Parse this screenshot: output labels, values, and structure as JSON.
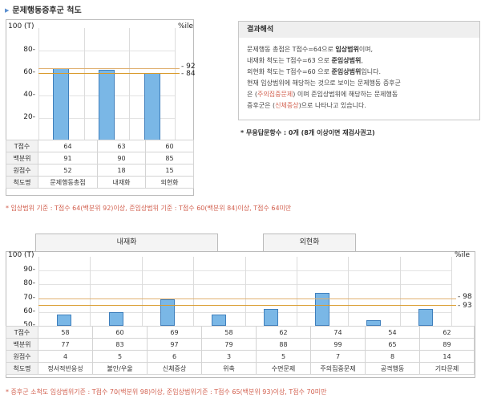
{
  "section_title": "문제행동증후군 척도",
  "chart1": {
    "ytop": "100 (T)",
    "yticks": [
      "80",
      "60",
      "40",
      "20"
    ],
    "pct_label": "%ile",
    "marker_high": "92",
    "marker_low": "84",
    "rows": [
      {
        "label": "T점수",
        "values": [
          "64",
          "63",
          "60"
        ]
      },
      {
        "label": "백분위",
        "values": [
          "91",
          "90",
          "85"
        ]
      },
      {
        "label": "원점수",
        "values": [
          "52",
          "18",
          "15"
        ]
      },
      {
        "label": "척도명",
        "values": [
          "문제행동총점",
          "내재화",
          "외현화"
        ]
      }
    ]
  },
  "panel": {
    "title": "결과해석",
    "line1_pre": "문제행동 총점은 T점수=64으로 ",
    "line1_b": "임상범위",
    "line1_post": "이며,",
    "line2_pre": "내재화 척도는 T점수=63 으로 ",
    "line2_b": "준임상범위",
    "line2_post": ",",
    "line3_pre": "외현화 척도는 T점수=60 으로 ",
    "line3_b": "준임상범위",
    "line3_post": "입니다.",
    "line4": "현재 임상범위에 해당하는 것으로 보이는 문제행동 증후군",
    "line5_pre": "은 (",
    "line5_hl": "주의집중문제",
    "line5_post": ") 이며 준임상범위에 해당하는 문제행동",
    "line6_pre": "증후군은 (",
    "line6_hl": "신체증상",
    "line6_post": ")으로 나타나고 있습니다."
  },
  "no_answer_note": "* 무응답문항수 : 0개 (8개 이상이면 재검사권고)",
  "criteria1": "* 임상범위 기준 : T점수 64(백분위 92)이상, 준임상범위 기준 : T점수 60(백분위 84)이상, T점수 64미만",
  "chart2": {
    "group_internal": "내재화",
    "group_external": "외현화",
    "ytop": "100 (T)",
    "yticks": [
      "90",
      "80",
      "70",
      "60",
      "50"
    ],
    "pct_label": "%ile",
    "marker_high": "98",
    "marker_low": "93",
    "rows": [
      {
        "label": "T점수",
        "values": [
          "58",
          "60",
          "69",
          "58",
          "62",
          "74",
          "54",
          "62"
        ]
      },
      {
        "label": "백분위",
        "values": [
          "77",
          "83",
          "97",
          "79",
          "88",
          "99",
          "65",
          "89"
        ]
      },
      {
        "label": "원점수",
        "values": [
          "4",
          "5",
          "6",
          "3",
          "5",
          "7",
          "8",
          "14"
        ]
      },
      {
        "label": "척도명",
        "values": [
          "정서적반응성",
          "불안/우울",
          "신체증상",
          "위축",
          "수면문제",
          "주의집중문제",
          "공격행동",
          "기타문제"
        ]
      }
    ]
  },
  "criteria2": "* 증후군 소척도 임상범위기준 : T점수 70(백분위 98)이상, 준임상범위기준 : T점수 65(백분위 93)이상, T점수 70미만",
  "chart_data": [
    {
      "type": "bar",
      "categories": [
        "문제행동총점",
        "내재화",
        "외현화"
      ],
      "values": [
        64,
        63,
        60
      ],
      "ylim": [
        0,
        100
      ],
      "reference_lines": [
        {
          "t": 64,
          "percentile": 92
        },
        {
          "t": 60,
          "percentile": 84
        }
      ]
    },
    {
      "type": "bar",
      "categories": [
        "정서적반응성",
        "불안/우울",
        "신체증상",
        "위축",
        "수면문제",
        "주의집중문제",
        "공격행동",
        "기타문제"
      ],
      "values": [
        58,
        60,
        69,
        58,
        62,
        74,
        54,
        62
      ],
      "ylim": [
        50,
        100
      ],
      "reference_lines": [
        {
          "t": 70,
          "percentile": 98
        },
        {
          "t": 65,
          "percentile": 93
        }
      ]
    }
  ],
  "colors": {
    "bar_fill": "#7ab7e6",
    "bar_stroke": "#3f7fbc",
    "ref_high": "#e0b070",
    "ref_low": "#d99a2a",
    "note_red": "#d2604f"
  }
}
